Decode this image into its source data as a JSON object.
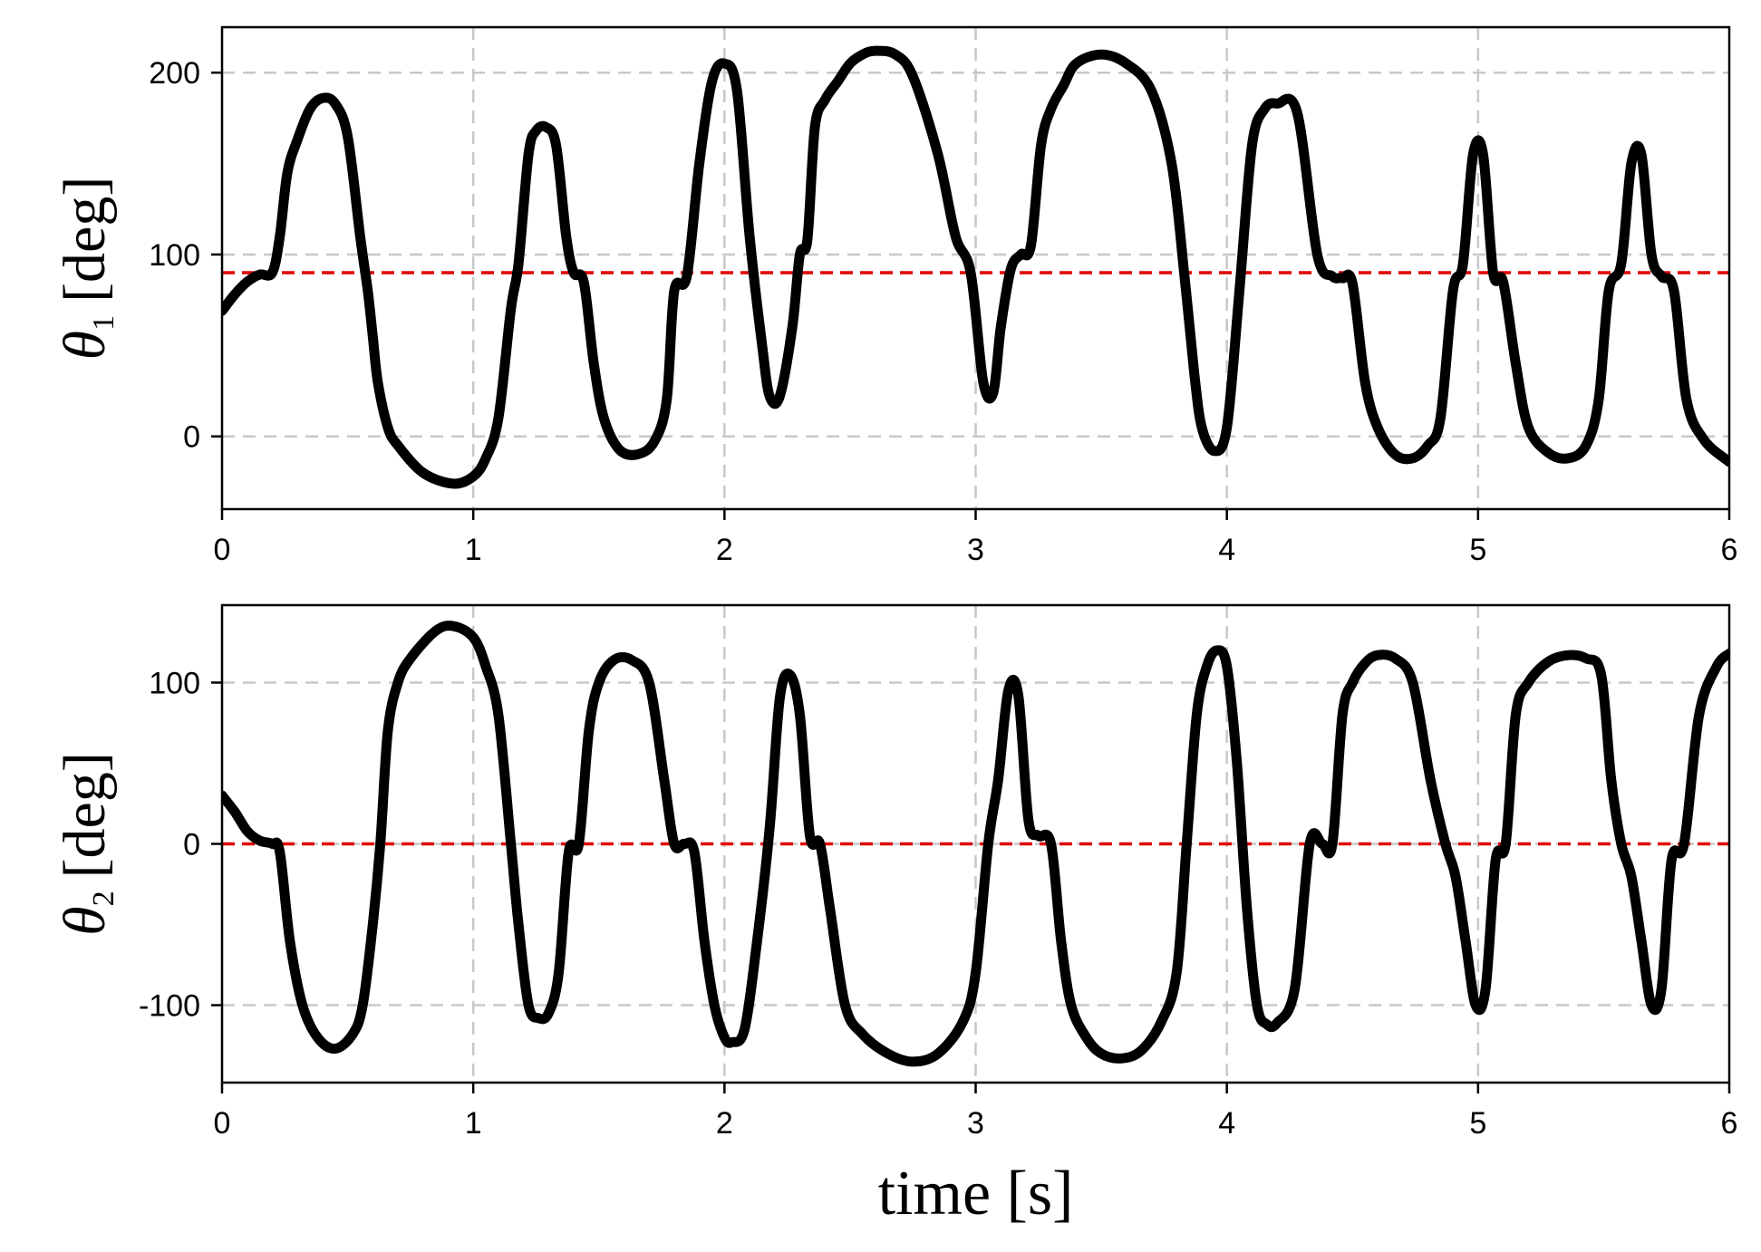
{
  "chart_data": [
    {
      "type": "line",
      "xlabel": "",
      "ylabel": "θ1 [deg]",
      "ylabel_symbol": "θ",
      "ylabel_subscript": "1",
      "ylabel_units": "[deg]",
      "xlim": [
        0,
        6
      ],
      "ylim": [
        -40,
        225
      ],
      "x_ticks": [
        0,
        1,
        2,
        3,
        4,
        5,
        6
      ],
      "y_ticks": [
        0,
        100,
        200
      ],
      "y_tick_labels": [
        "0",
        "100",
        "200"
      ],
      "grid": true,
      "reference_line": {
        "y": 90,
        "color": "#e00000",
        "style": "dashed"
      },
      "series": [
        {
          "color": "#000000",
          "x": [
            0,
            0.05,
            0.1,
            0.15,
            0.2,
            0.23,
            0.26,
            0.3,
            0.35,
            0.4,
            0.45,
            0.5,
            0.55,
            0.58,
            0.6,
            0.62,
            0.66,
            0.7,
            0.8,
            0.92,
            1.0,
            1.05,
            1.1,
            1.15,
            1.18,
            1.22,
            1.25,
            1.29,
            1.33,
            1.37,
            1.4,
            1.44,
            1.48,
            1.52,
            1.58,
            1.65,
            1.72,
            1.77,
            1.8,
            1.85,
            1.9,
            1.95,
            2.0,
            2.05,
            2.1,
            2.15,
            2.18,
            2.22,
            2.27,
            2.3,
            2.33,
            2.36,
            2.4,
            2.45,
            2.5,
            2.55,
            2.6,
            2.68,
            2.75,
            2.85,
            2.92,
            2.98,
            3.03,
            3.07,
            3.1,
            3.14,
            3.18,
            3.22,
            3.26,
            3.3,
            3.35,
            3.4,
            3.5,
            3.6,
            3.7,
            3.78,
            3.83,
            3.87,
            3.9,
            3.95,
            4.0,
            4.05,
            4.1,
            4.15,
            4.2,
            4.28,
            4.36,
            4.42,
            4.46,
            4.5,
            4.55,
            4.6,
            4.67,
            4.74,
            4.8,
            4.85,
            4.9,
            4.94,
            4.98,
            5.02,
            5.06,
            5.1,
            5.15,
            5.2,
            5.28,
            5.36,
            5.43,
            5.48,
            5.52,
            5.57,
            5.61,
            5.65,
            5.69,
            5.73,
            5.78,
            5.83,
            5.9,
            6.0
          ],
          "y": [
            69,
            78,
            85,
            89,
            90,
            110,
            145,
            163,
            180,
            186,
            183,
            165,
            110,
            80,
            55,
            30,
            5,
            -5,
            -20,
            -26,
            -22,
            -12,
            10,
            70,
            95,
            155,
            168,
            170,
            160,
            110,
            90,
            85,
            40,
            10,
            -7,
            -10,
            -3,
            20,
            80,
            88,
            150,
            195,
            205,
            190,
            110,
            50,
            22,
            22,
            60,
            100,
            108,
            170,
            185,
            195,
            205,
            210,
            212,
            210,
            198,
            155,
            110,
            90,
            30,
            24,
            60,
            92,
            100,
            105,
            160,
            180,
            193,
            205,
            210,
            205,
            190,
            150,
            90,
            35,
            5,
            -8,
            5,
            80,
            160,
            180,
            183,
            178,
            100,
            88,
            87,
            84,
            30,
            5,
            -10,
            -12,
            -5,
            10,
            80,
            95,
            155,
            155,
            90,
            85,
            40,
            5,
            -9,
            -12,
            -5,
            20,
            80,
            95,
            150,
            155,
            100,
            88,
            80,
            20,
            -2,
            -14
          ]
        }
      ]
    },
    {
      "type": "line",
      "xlabel": "time [s]",
      "ylabel": "θ2 [deg]",
      "ylabel_symbol": "θ",
      "ylabel_subscript": "2",
      "ylabel_units": "[deg]",
      "xlim": [
        0,
        6
      ],
      "ylim": [
        -148,
        148
      ],
      "x_ticks": [
        0,
        1,
        2,
        3,
        4,
        5,
        6
      ],
      "y_ticks": [
        -100,
        0,
        100
      ],
      "y_tick_labels": [
        "-100",
        "0",
        "100"
      ],
      "grid": true,
      "reference_line": {
        "y": 0,
        "color": "#e00000",
        "style": "dashed"
      },
      "series": [
        {
          "color": "#000000",
          "x": [
            0,
            0.05,
            0.1,
            0.15,
            0.2,
            0.23,
            0.27,
            0.32,
            0.38,
            0.45,
            0.52,
            0.56,
            0.6,
            0.63,
            0.66,
            0.7,
            0.75,
            0.85,
            0.92,
            1.0,
            1.05,
            1.1,
            1.15,
            1.18,
            1.22,
            1.26,
            1.3,
            1.34,
            1.38,
            1.42,
            1.46,
            1.5,
            1.56,
            1.63,
            1.7,
            1.76,
            1.8,
            1.84,
            1.88,
            1.92,
            1.96,
            2.0,
            2.03,
            2.08,
            2.13,
            2.18,
            2.22,
            2.26,
            2.3,
            2.34,
            2.38,
            2.42,
            2.48,
            2.55,
            2.65,
            2.75,
            2.85,
            2.95,
            3.0,
            3.05,
            3.09,
            3.13,
            3.17,
            3.21,
            3.25,
            3.3,
            3.34,
            3.38,
            3.44,
            3.5,
            3.58,
            3.66,
            3.74,
            3.8,
            3.84,
            3.88,
            3.92,
            3.96,
            4.0,
            4.04,
            4.08,
            4.12,
            4.16,
            4.2,
            4.27,
            4.33,
            4.38,
            4.42,
            4.46,
            4.5,
            4.55,
            4.6,
            4.67,
            4.74,
            4.81,
            4.87,
            4.91,
            4.95,
            4.99,
            5.03,
            5.07,
            5.11,
            5.15,
            5.2,
            5.28,
            5.36,
            5.43,
            5.49,
            5.53,
            5.57,
            5.61,
            5.65,
            5.69,
            5.73,
            5.77,
            5.82,
            5.88,
            5.95,
            6.0
          ],
          "y": [
            30,
            20,
            8,
            2,
            0,
            -5,
            -60,
            -100,
            -120,
            -127,
            -118,
            -100,
            -50,
            0,
            70,
            100,
            115,
            132,
            135,
            128,
            110,
            80,
            0,
            -50,
            -100,
            -108,
            -105,
            -80,
            -5,
            0,
            70,
            100,
            114,
            114,
            100,
            40,
            0,
            0,
            -5,
            -60,
            -100,
            -120,
            -123,
            -115,
            -60,
            10,
            90,
            105,
            80,
            5,
            0,
            -40,
            -100,
            -118,
            -130,
            -135,
            -130,
            -110,
            -80,
            0,
            40,
            95,
            92,
            15,
            5,
            0,
            -60,
            -100,
            -120,
            -130,
            -133,
            -128,
            -110,
            -80,
            0,
            80,
            110,
            120,
            110,
            50,
            -40,
            -100,
            -112,
            -111,
            -90,
            0,
            0,
            0,
            80,
            100,
            112,
            117,
            115,
            100,
            40,
            0,
            -20,
            -60,
            -100,
            -90,
            -10,
            0,
            80,
            100,
            113,
            117,
            115,
            105,
            40,
            0,
            -20,
            -60,
            -100,
            -90,
            -10,
            0,
            80,
            110,
            118
          ]
        }
      ]
    }
  ]
}
